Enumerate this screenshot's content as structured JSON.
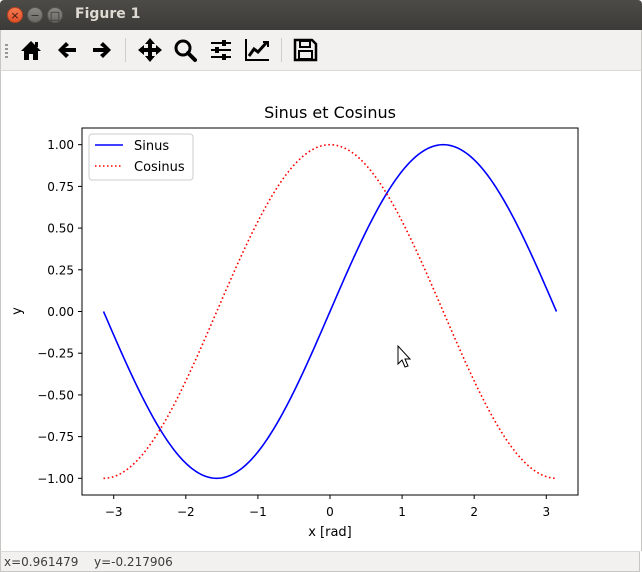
{
  "window": {
    "title": "Figure 1",
    "buttons": {
      "close": "×",
      "minimize": "−",
      "maximize": "□"
    }
  },
  "toolbar": {
    "items": [
      "home-icon",
      "back-arrow-icon",
      "forward-arrow-icon",
      "pan-icon",
      "zoom-icon",
      "subplots-icon",
      "axes-icon",
      "save-icon"
    ]
  },
  "status": {
    "x": "x=0.961479",
    "y": "y=-0.217906"
  },
  "chart_data": {
    "type": "line",
    "title": "Sinus et Cosinus",
    "xlabel": "x [rad]",
    "ylabel": "y",
    "xlim": [
      -3.44,
      3.44
    ],
    "ylim": [
      -1.1,
      1.1
    ],
    "x_ticks": [
      -3,
      -2,
      -1,
      0,
      1,
      2,
      3
    ],
    "x_tick_labels": [
      "−3",
      "−2",
      "−1",
      "0",
      "1",
      "2",
      "3"
    ],
    "y_ticks": [
      1.0,
      0.75,
      0.5,
      0.25,
      0.0,
      -0.25,
      -0.5,
      -0.75,
      -1.0
    ],
    "y_tick_labels": [
      "1.00",
      "0.75",
      "0.50",
      "0.25",
      "0.00",
      "−0.25",
      "−0.50",
      "−0.75",
      "−1.00"
    ],
    "x_range": [
      -3.14159,
      3.14159
    ],
    "series": [
      {
        "name": "Sinus",
        "function": "sin",
        "color": "#0000ff",
        "style": "solid"
      },
      {
        "name": "Cosinus",
        "function": "cos",
        "color": "#ff0000",
        "style": "dotted"
      }
    ],
    "grid": false,
    "legend": "upper-left"
  }
}
